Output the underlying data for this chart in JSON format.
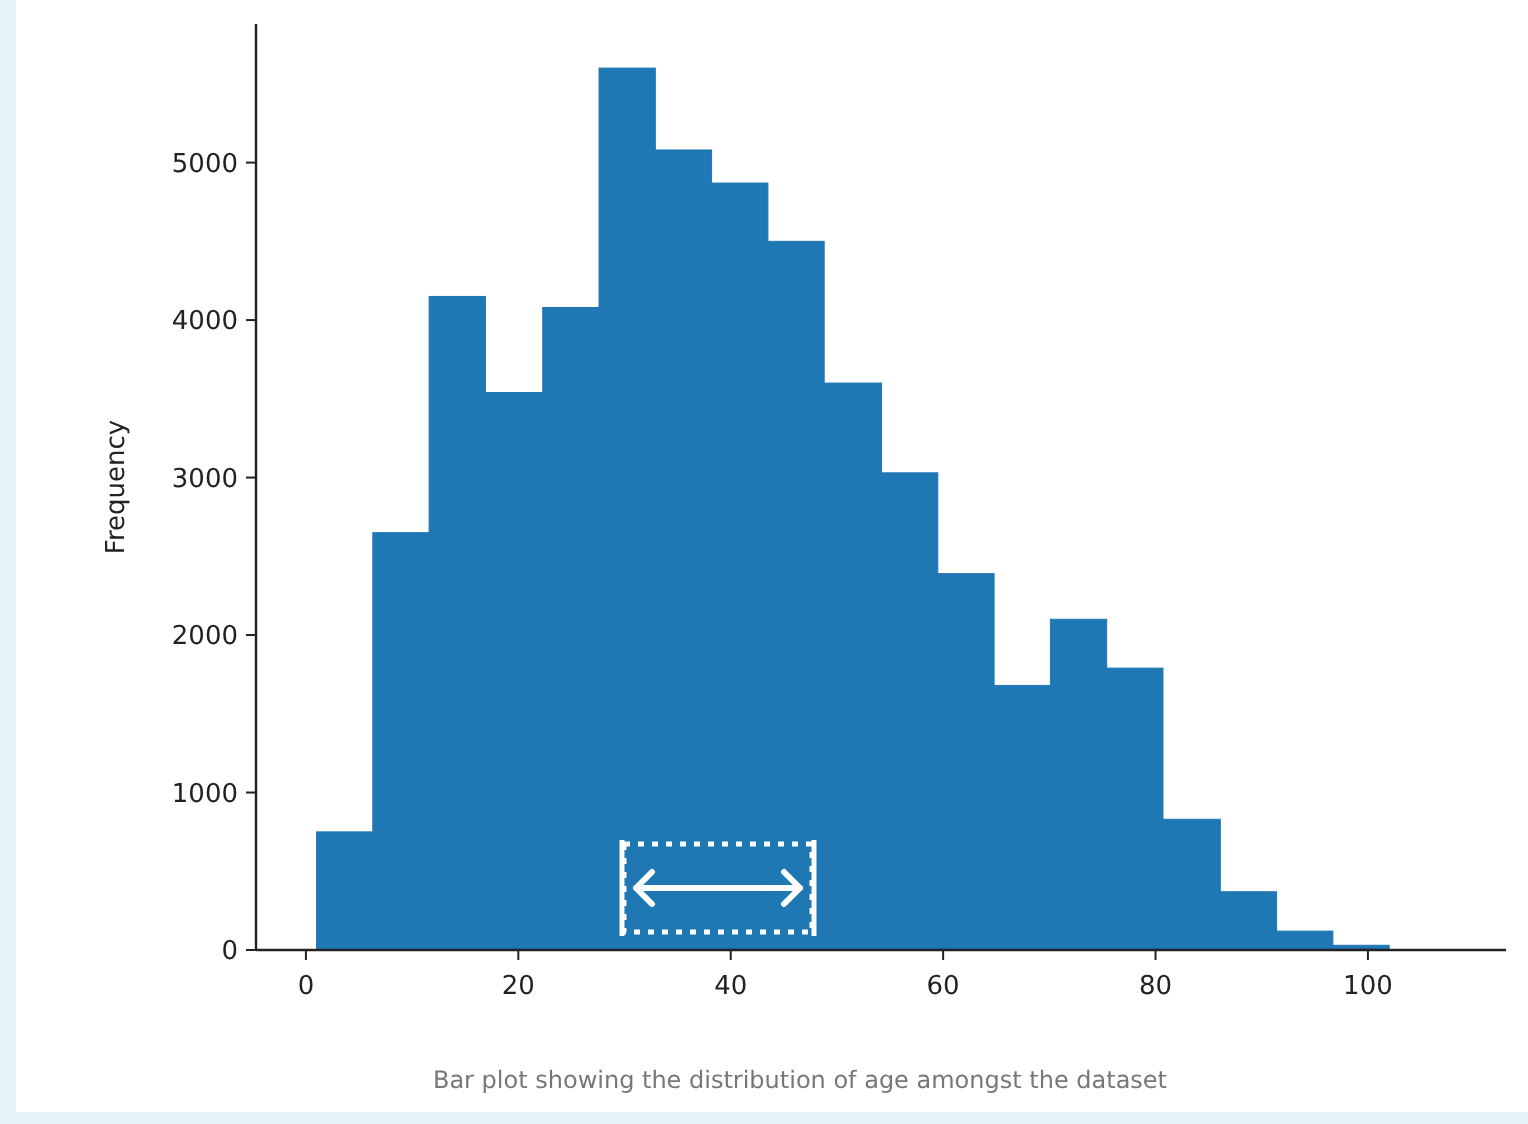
{
  "chart_data": {
    "type": "histogram",
    "ylabel": "Frequency",
    "color": "#1f77b4",
    "bins": [
      1,
      6.3,
      11.6,
      16.9,
      22.3,
      27.6,
      32.9,
      38.2,
      43.5,
      48.8,
      54.2,
      59.5,
      64.8,
      70.1,
      75.4,
      80.7,
      86.1,
      91.4,
      96.7,
      102
    ],
    "values": [
      750,
      2650,
      4150,
      3540,
      4080,
      5600,
      5080,
      4870,
      4500,
      3600,
      3030,
      2390,
      1680,
      2100,
      1790,
      830,
      370,
      120,
      30
    ],
    "xlim": [
      -4.7,
      113
    ],
    "ylim": [
      0,
      5880
    ],
    "xticks": [
      0,
      20,
      40,
      60,
      80,
      100
    ],
    "yticks": [
      0,
      1000,
      2000,
      3000,
      4000,
      5000
    ],
    "annotations": [
      "Bar plot showing the distribution of age amongst the dataset"
    ]
  }
}
